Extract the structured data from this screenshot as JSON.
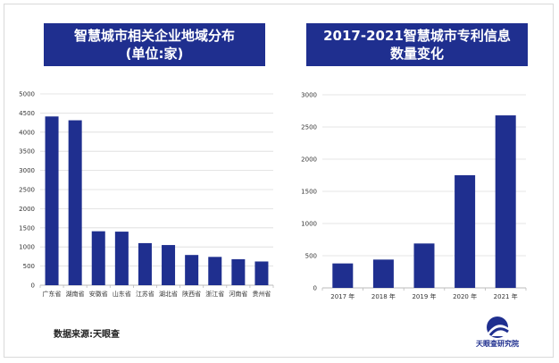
{
  "colors": {
    "bar": "#1f2f8f",
    "grid": "#dcdcdc",
    "axis": "#bbbbbb",
    "title_bg": "#1f2f8f"
  },
  "source_text": "数据来源:天眼查",
  "logo": {
    "icon": "tianyancha-logo-icon",
    "text": "天眼查研究院"
  },
  "chart_data": [
    {
      "type": "bar",
      "title": "智慧城市相关企业地域分布",
      "subtitle": "(单位:家)",
      "categories": [
        "广东省",
        "湖南省",
        "安徽省",
        "山东省",
        "江苏省",
        "湖北省",
        "陕西省",
        "浙江省",
        "河南省",
        "贵州省"
      ],
      "values": [
        4410,
        4310,
        1410,
        1400,
        1100,
        1050,
        790,
        740,
        680,
        620
      ],
      "yticks": [
        "0",
        "500",
        "1000",
        "1500",
        "2000",
        "2500",
        "3000",
        "3500",
        "4000",
        "4500",
        "5000"
      ],
      "ylim": [
        0,
        5000
      ],
      "grid": true,
      "xlabel": "",
      "ylabel": ""
    },
    {
      "type": "bar",
      "title": "2017-2021智慧城市专利信息",
      "subtitle": "数量变化",
      "categories": [
        "2017 年",
        "2018 年",
        "2019 年",
        "2020 年",
        "2021 年"
      ],
      "values": [
        380,
        440,
        690,
        1750,
        2680
      ],
      "yticks": [
        "0",
        "500",
        "1000",
        "1500",
        "2000",
        "2500",
        "3000"
      ],
      "ylim": [
        0,
        3000
      ],
      "grid": true,
      "xlabel": "",
      "ylabel": ""
    }
  ]
}
